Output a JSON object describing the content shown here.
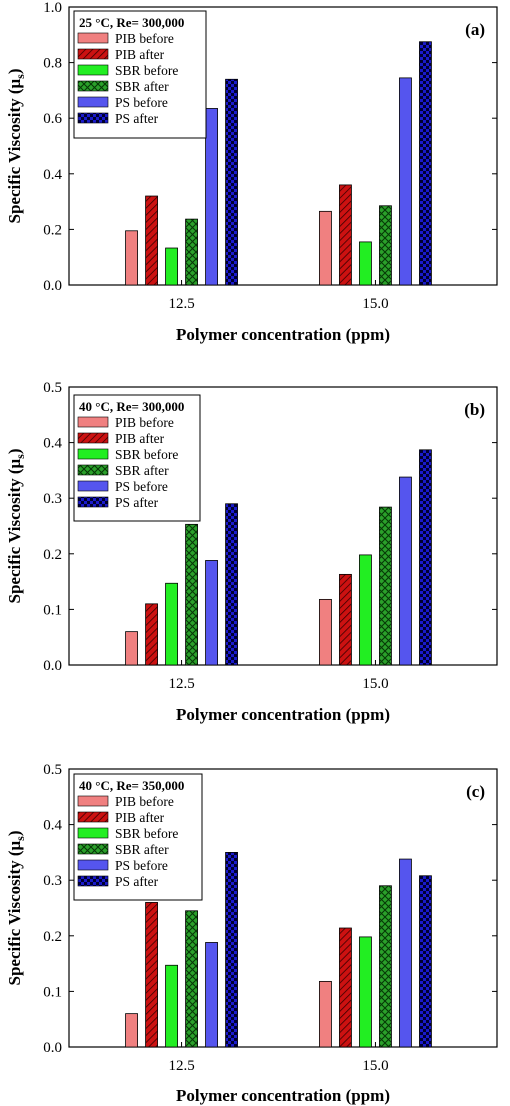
{
  "chart_data": [
    {
      "type": "bar",
      "panel_label": "(a)",
      "condition": "25 °C, Re= 300,000",
      "categories": [
        "12.5",
        "15.0"
      ],
      "xlabel": "Polymer concentration (ppm)",
      "ylabel": "Specific Viscosity (μs)",
      "ylim": [
        0,
        1.0
      ],
      "yticks": [
        "0.0",
        "0.2",
        "0.4",
        "0.6",
        "0.8",
        "1.0"
      ],
      "legend": "top-left",
      "series": [
        {
          "name": "PIB before",
          "values": [
            0.195,
            0.265
          ]
        },
        {
          "name": "PIB after",
          "values": [
            0.32,
            0.36
          ]
        },
        {
          "name": "SBR before",
          "values": [
            0.133,
            0.155
          ]
        },
        {
          "name": "SBR after",
          "values": [
            0.237,
            0.285
          ]
        },
        {
          "name": "PS before",
          "values": [
            0.635,
            0.745
          ]
        },
        {
          "name": "PS after",
          "values": [
            0.74,
            0.875
          ]
        }
      ]
    },
    {
      "type": "bar",
      "panel_label": "(b)",
      "condition": "40 °C, Re= 300,000",
      "categories": [
        "12.5",
        "15.0"
      ],
      "xlabel": "Polymer concentration (ppm)",
      "ylabel": "Specific Viscosity (μs)",
      "ylim": [
        0,
        0.5
      ],
      "yticks": [
        "0.0",
        "0.1",
        "0.2",
        "0.3",
        "0.4",
        "0.5"
      ],
      "legend": "top-left",
      "series": [
        {
          "name": "PIB before",
          "values": [
            0.06,
            0.118
          ]
        },
        {
          "name": "PIB after",
          "values": [
            0.11,
            0.163
          ]
        },
        {
          "name": "SBR before",
          "values": [
            0.147,
            0.198
          ]
        },
        {
          "name": "SBR after",
          "values": [
            0.253,
            0.284
          ]
        },
        {
          "name": "PS before",
          "values": [
            0.188,
            0.338
          ]
        },
        {
          "name": "PS after",
          "values": [
            0.29,
            0.387
          ]
        }
      ]
    },
    {
      "type": "bar",
      "panel_label": "(c)",
      "condition": "40 °C, Re= 350,000",
      "categories": [
        "12.5",
        "15.0"
      ],
      "xlabel": "Polymer concentration (ppm)",
      "ylabel": "Specific Viscosity (μs)",
      "ylim": [
        0,
        0.5
      ],
      "yticks": [
        "0.0",
        "0.1",
        "0.2",
        "0.3",
        "0.4",
        "0.5"
      ],
      "legend": "top-left",
      "series": [
        {
          "name": "PIB before",
          "values": [
            0.06,
            0.118
          ]
        },
        {
          "name": "PIB after",
          "values": [
            0.26,
            0.214
          ]
        },
        {
          "name": "SBR before",
          "values": [
            0.147,
            0.198
          ]
        },
        {
          "name": "SBR after",
          "values": [
            0.245,
            0.29
          ]
        },
        {
          "name": "PS before",
          "values": [
            0.188,
            0.338
          ]
        },
        {
          "name": "PS after",
          "values": [
            0.35,
            0.308
          ]
        }
      ]
    }
  ],
  "series_styles": [
    {
      "name": "PIB before",
      "color": "#f08080",
      "pattern": "solid"
    },
    {
      "name": "PIB after",
      "color": "#cc1111",
      "pattern": "diagonal-hatch"
    },
    {
      "name": "SBR before",
      "color": "#22ee22",
      "pattern": "solid"
    },
    {
      "name": "SBR after",
      "color": "#229922",
      "pattern": "crosshatch"
    },
    {
      "name": "PS before",
      "color": "#5555ee",
      "pattern": "solid"
    },
    {
      "name": "PS after",
      "color": "#1a1acc",
      "pattern": "checker"
    }
  ]
}
